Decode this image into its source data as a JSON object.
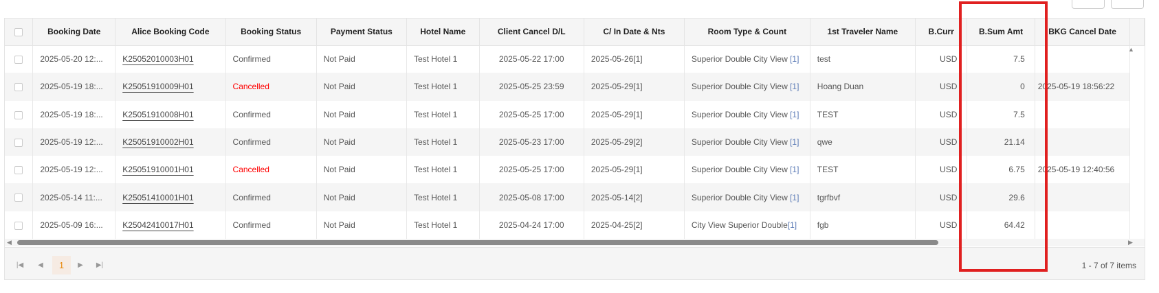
{
  "columns": [
    "",
    "Booking Date",
    "Alice Booking Code",
    "Booking Status",
    "Payment Status",
    "Hotel Name",
    "Client Cancel D/L",
    "C/ In Date & Nts",
    "Room Type & Count",
    "1st Traveler Name",
    "B.Curr",
    "B.Sum Amt",
    "BKG Cancel Date"
  ],
  "rows": [
    {
      "date": "2025-05-20 12:...",
      "code": "K25052010003H01",
      "status": "Confirmed",
      "payment": "Not Paid",
      "hotel": "Test Hotel 1",
      "cancel_dl": "2025-05-22 17:00",
      "checkin": "2025-05-26[1]",
      "room": "Superior Double City View ",
      "room_count": "[1]",
      "traveler": "test",
      "curr": "USD",
      "amt": "7.5",
      "bkg_cancel": ""
    },
    {
      "date": "2025-05-19 18:...",
      "code": "K25051910009H01",
      "status": "Cancelled",
      "payment": "Not Paid",
      "hotel": "Test Hotel 1",
      "cancel_dl": "2025-05-25 23:59",
      "checkin": "2025-05-29[1]",
      "room": "Superior Double City View ",
      "room_count": "[1]",
      "traveler": "Hoang Duan",
      "curr": "USD",
      "amt": "0",
      "bkg_cancel": "2025-05-19 18:56:22"
    },
    {
      "date": "2025-05-19 18:...",
      "code": "K25051910008H01",
      "status": "Confirmed",
      "payment": "Not Paid",
      "hotel": "Test Hotel 1",
      "cancel_dl": "2025-05-25 17:00",
      "checkin": "2025-05-29[1]",
      "room": "Superior Double City View ",
      "room_count": "[1]",
      "traveler": "TEST",
      "curr": "USD",
      "amt": "7.5",
      "bkg_cancel": ""
    },
    {
      "date": "2025-05-19 12:...",
      "code": "K25051910002H01",
      "status": "Confirmed",
      "payment": "Not Paid",
      "hotel": "Test Hotel 1",
      "cancel_dl": "2025-05-23 17:00",
      "checkin": "2025-05-29[2]",
      "room": "Superior Double City View ",
      "room_count": "[1]",
      "traveler": "qwe",
      "curr": "USD",
      "amt": "21.14",
      "bkg_cancel": ""
    },
    {
      "date": "2025-05-19 12:...",
      "code": "K25051910001H01",
      "status": "Cancelled",
      "payment": "Not Paid",
      "hotel": "Test Hotel 1",
      "cancel_dl": "2025-05-25 17:00",
      "checkin": "2025-05-29[1]",
      "room": "Superior Double City View ",
      "room_count": "[1]",
      "traveler": "TEST",
      "curr": "USD",
      "amt": "6.75",
      "bkg_cancel": "2025-05-19 12:40:56"
    },
    {
      "date": "2025-05-14 11:...",
      "code": "K25051410001H01",
      "status": "Confirmed",
      "payment": "Not Paid",
      "hotel": "Test Hotel 1",
      "cancel_dl": "2025-05-08 17:00",
      "checkin": "2025-05-14[2]",
      "room": "Superior Double City View ",
      "room_count": "[1]",
      "traveler": "tgrfbvf",
      "curr": "USD",
      "amt": "29.6",
      "bkg_cancel": ""
    },
    {
      "date": "2025-05-09 16:...",
      "code": "K25042410017H01",
      "status": "Confirmed",
      "payment": "Not Paid",
      "hotel": "Test Hotel 1",
      "cancel_dl": "2025-04-24 17:00",
      "checkin": "2025-04-25[2]",
      "room": "City View Superior Double",
      "room_count": "[1]",
      "traveler": "fgb",
      "curr": "USD",
      "amt": "64.42",
      "bkg_cancel": ""
    }
  ],
  "pager": {
    "current_page": "1",
    "info": "1 - 7 of 7 items",
    "icons": [
      "first-page-icon",
      "prev-page-icon",
      "next-page-icon",
      "last-page-icon"
    ]
  },
  "colors": {
    "cancelled": "#ff0000",
    "highlight_box": "#e02020",
    "active_page": "#e8890c"
  }
}
